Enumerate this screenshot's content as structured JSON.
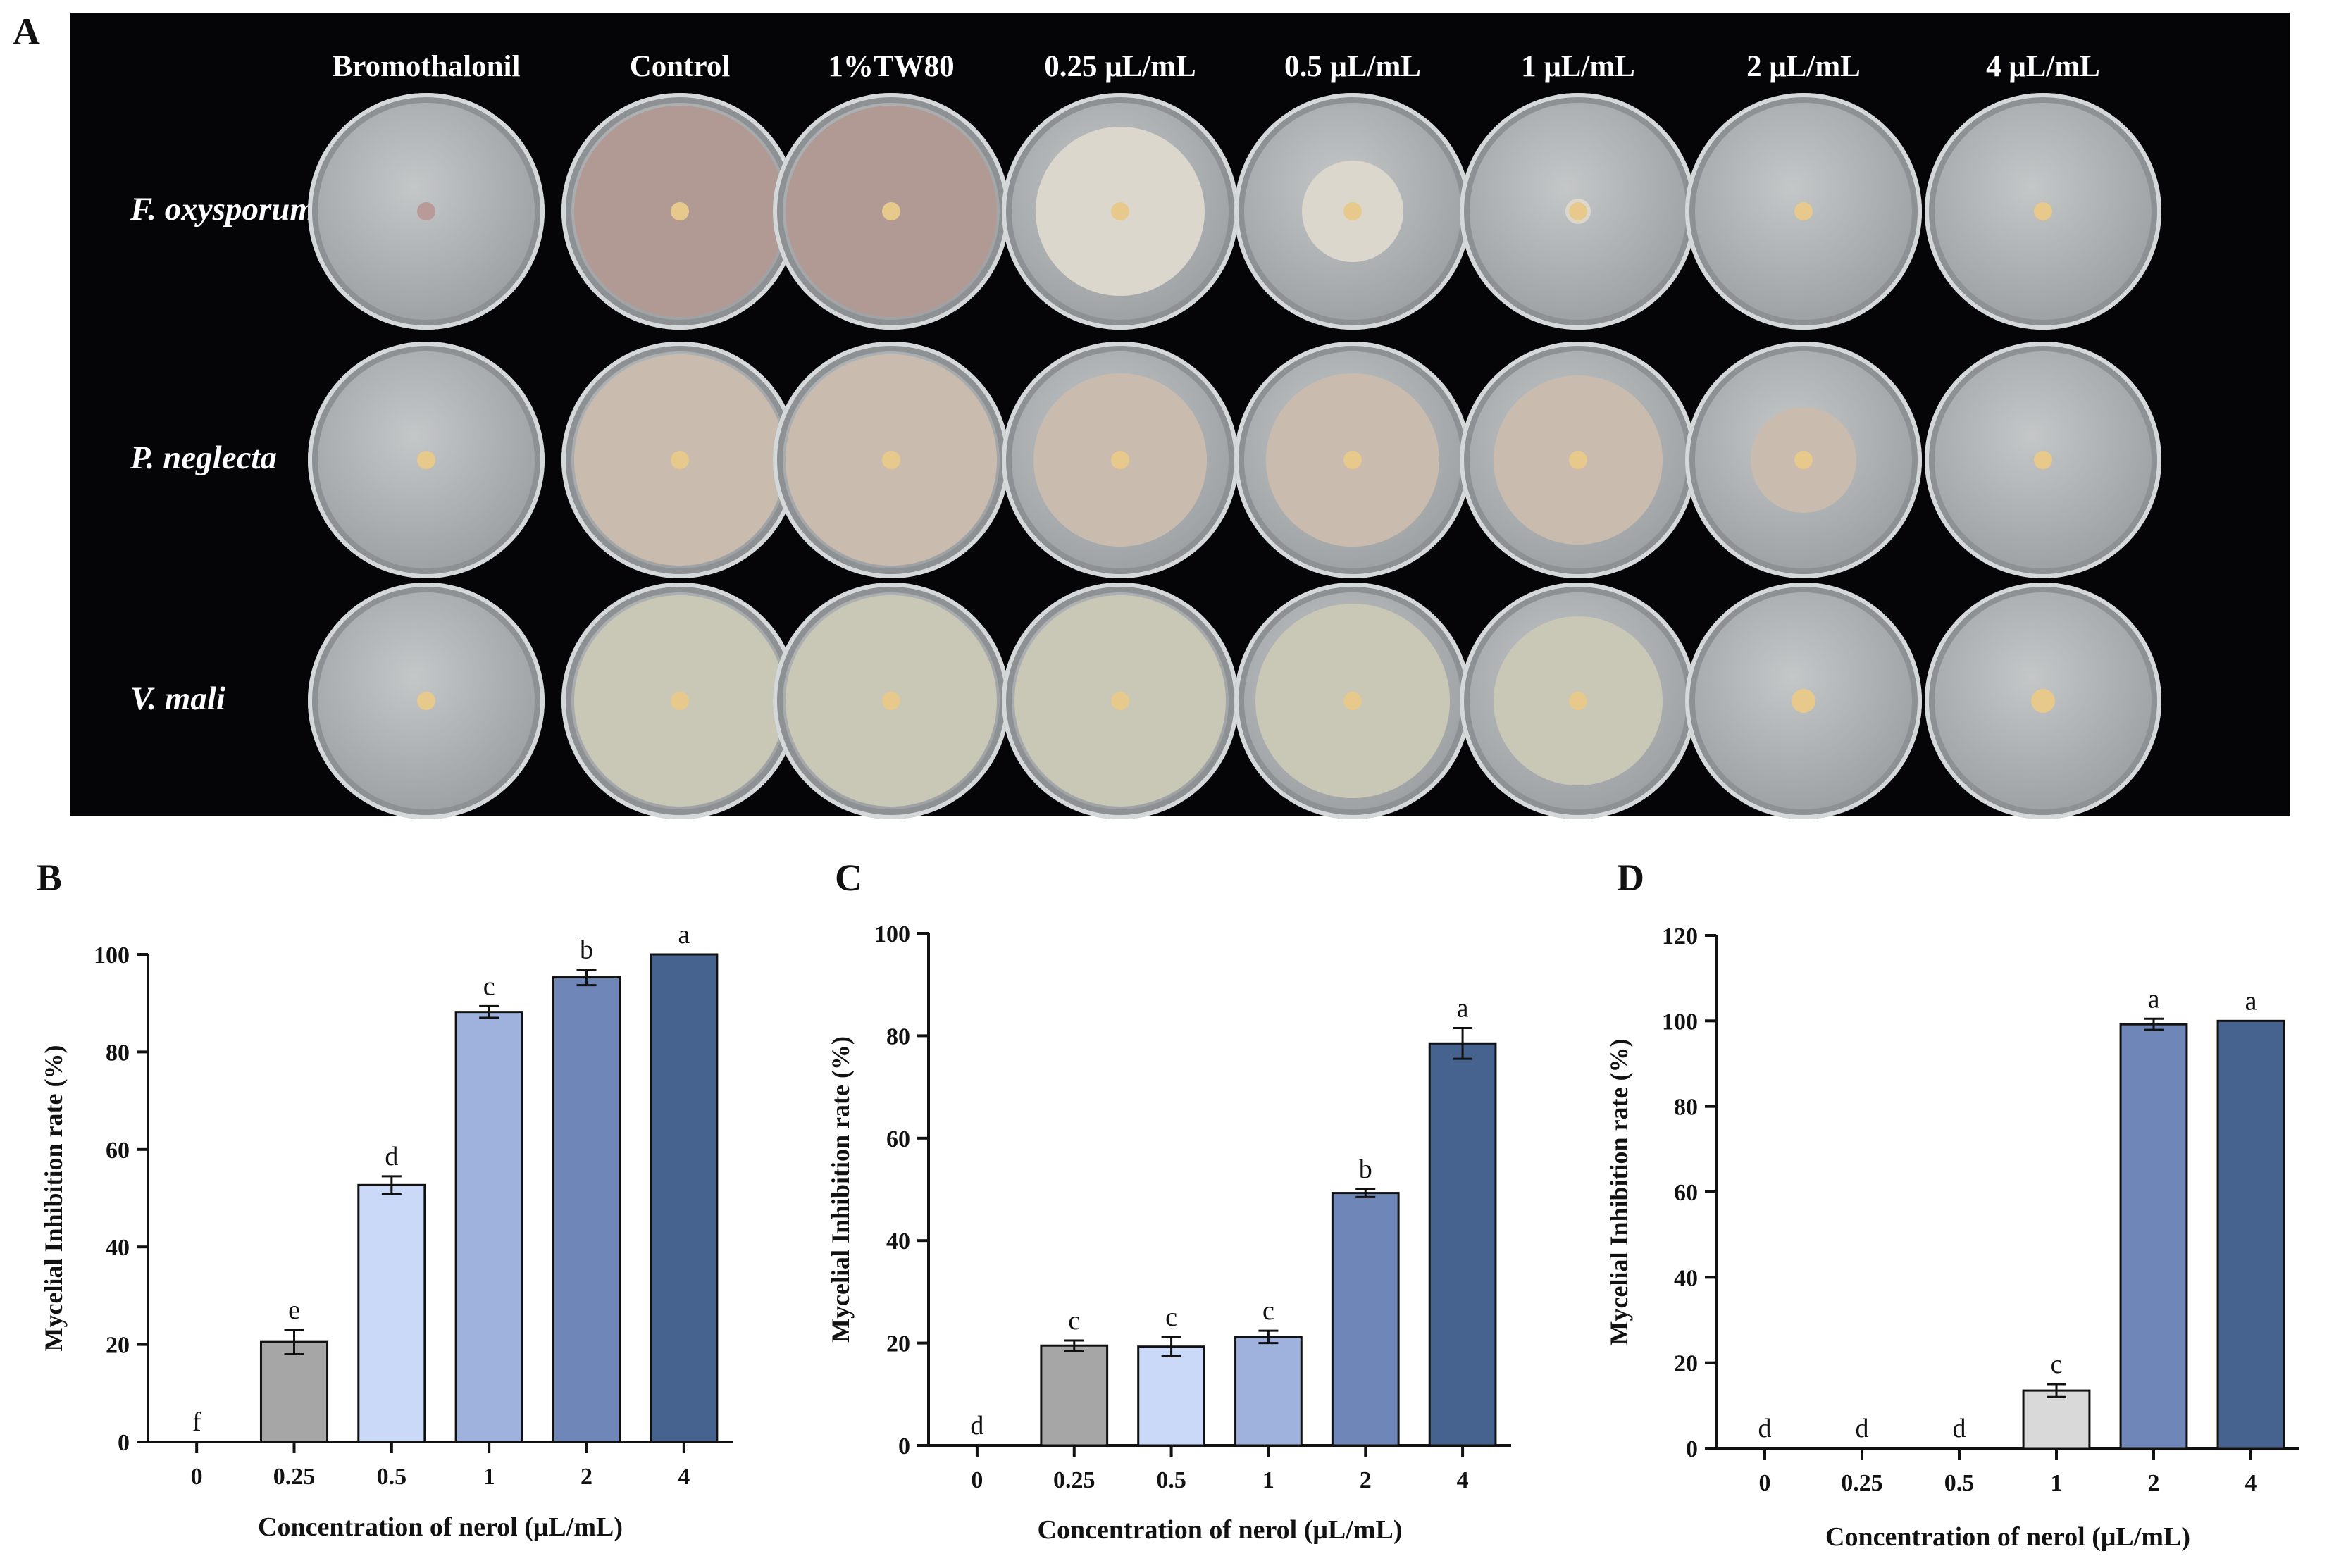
{
  "panel_letters": [
    "A",
    "B",
    "C",
    "D"
  ],
  "photo_panel": {
    "columns": [
      "Bromothalonil",
      "Control",
      "1%TW80",
      "0.25 μL/mL",
      "0.5 μL/mL",
      "1 μL/mL",
      "2 μL/mL",
      "4 μL/mL"
    ],
    "rows": [
      "F. oxysporum",
      "P. neglecta",
      "V. mali"
    ],
    "colony_fraction": [
      [
        0.0,
        1.0,
        1.0,
        0.8,
        0.48,
        0.12,
        0.05,
        0.0
      ],
      [
        0.0,
        1.0,
        1.0,
        0.82,
        0.82,
        0.8,
        0.5,
        0.0
      ],
      [
        0.0,
        1.0,
        1.0,
        1.0,
        0.92,
        0.8,
        0.0,
        0.0
      ]
    ],
    "colors": {
      "background": "#050507",
      "agar": "#aeb1b2",
      "fusarium_control": "#b29a94",
      "fusarium_treated": "#dcd7cc",
      "pestalotiopsis": "#c9bcae",
      "valsa": "#c9c7b5",
      "plug": "#e8c98c"
    }
  },
  "chart_data": [
    {
      "type": "bar",
      "panel": "B",
      "categories": [
        "0",
        "0.25",
        "0.5",
        "1",
        "2",
        "4"
      ],
      "values": [
        0,
        20.5,
        52.7,
        88.2,
        95.3,
        100
      ],
      "errors": [
        0,
        2.5,
        1.8,
        1.2,
        1.6,
        0
      ],
      "letters": [
        "f",
        "e",
        "d",
        "c",
        "b",
        "a"
      ],
      "colors": [
        "#ffffff",
        "#a6a6a6",
        "#cad9f7",
        "#9fb1dd",
        "#6e87b8",
        "#46628f"
      ],
      "xlabel": "Concentration of nerol (μL/mL)",
      "ylabel": "Mycelial  Inhibition rate (%)",
      "ylim": [
        0,
        100
      ],
      "yticks": [
        0,
        20,
        40,
        60,
        80,
        100
      ]
    },
    {
      "type": "bar",
      "panel": "C",
      "categories": [
        "0",
        "0.25",
        "0.5",
        "1",
        "2",
        "4"
      ],
      "values": [
        0,
        19.5,
        19.3,
        21.2,
        49.3,
        78.5
      ],
      "errors": [
        0,
        1.0,
        1.9,
        1.2,
        0.8,
        3.0
      ],
      "letters": [
        "d",
        "c",
        "c",
        "c",
        "b",
        "a"
      ],
      "colors": [
        "#ffffff",
        "#a6a6a6",
        "#cad9f7",
        "#9fb1dd",
        "#6e87b8",
        "#46628f"
      ],
      "xlabel": "Concentration of nerol (μL/mL)",
      "ylabel": "Mycelial Inhibition rate (%)",
      "ylim": [
        0,
        100
      ],
      "yticks": [
        0,
        20,
        40,
        60,
        80,
        100
      ]
    },
    {
      "type": "bar",
      "panel": "D",
      "categories": [
        "0",
        "0.25",
        "0.5",
        "1",
        "2",
        "4"
      ],
      "values": [
        0,
        0,
        0,
        13.5,
        99.2,
        100
      ],
      "errors": [
        0,
        0,
        0,
        1.5,
        1.3,
        0
      ],
      "letters": [
        "d",
        "d",
        "d",
        "c",
        "a",
        "a"
      ],
      "colors": [
        "#ffffff",
        "#ffffff",
        "#ffffff",
        "#d9d9d9",
        "#6e87b8",
        "#46628f"
      ],
      "xlabel": "Concentration of nerol (μL/mL)",
      "ylabel": "Mycelial Inhibition rate (%)",
      "ylim": [
        0,
        120
      ],
      "yticks": [
        0,
        20,
        40,
        60,
        80,
        100,
        120
      ]
    }
  ]
}
